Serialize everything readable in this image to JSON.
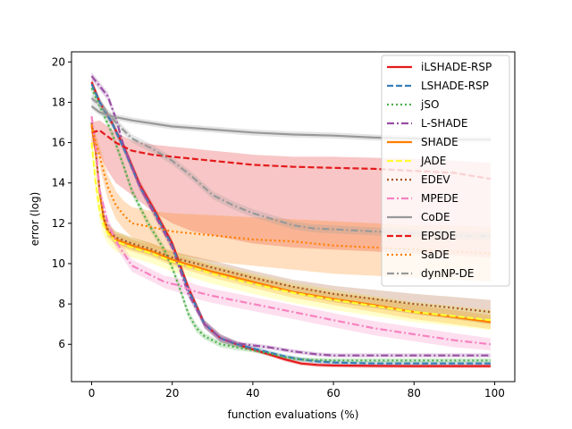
{
  "chart_data": {
    "type": "line",
    "title": "",
    "xlabel": "function evaluations (%)",
    "ylabel": "error (log)",
    "xlim": [
      -5,
      105
    ],
    "ylim": [
      4.15,
      20.5
    ],
    "xticks": [
      0,
      20,
      40,
      60,
      80,
      100
    ],
    "yticks": [
      6,
      8,
      10,
      12,
      14,
      16,
      18,
      20
    ],
    "grid": false,
    "legend_position": "top-right",
    "series": [
      {
        "name": "iLSHADE-RSP",
        "color": "#e41a1c",
        "dash": "solid",
        "x": [
          0,
          2,
          5,
          8,
          12,
          16,
          20,
          24,
          28,
          32,
          36,
          40,
          44,
          48,
          52,
          56,
          60,
          70,
          80,
          90,
          99
        ],
        "y": [
          19.0,
          18.0,
          17.0,
          15.8,
          13.9,
          12.5,
          11.0,
          8.8,
          7.0,
          6.3,
          6.0,
          5.75,
          5.5,
          5.25,
          5.05,
          4.98,
          4.95,
          4.93,
          4.92,
          4.92,
          4.92
        ],
        "band_lo": [
          18.8,
          17.8,
          16.8,
          15.6,
          13.7,
          12.3,
          10.8,
          8.6,
          6.8,
          6.1,
          5.85,
          5.65,
          5.4,
          5.15,
          4.95,
          4.88,
          4.85,
          4.83,
          4.82,
          4.82,
          4.82
        ],
        "band_hi": [
          19.2,
          18.2,
          17.2,
          16.0,
          14.1,
          12.7,
          11.2,
          9.0,
          7.2,
          6.5,
          6.15,
          5.85,
          5.6,
          5.35,
          5.15,
          5.08,
          5.05,
          5.03,
          5.02,
          5.02,
          5.02
        ]
      },
      {
        "name": "LSHADE-RSP",
        "color": "#377eb8",
        "dash": "dashed",
        "x": [
          0,
          2,
          5,
          8,
          12,
          16,
          20,
          24,
          28,
          32,
          36,
          40,
          44,
          48,
          52,
          56,
          60,
          70,
          80,
          90,
          99
        ],
        "y": [
          18.9,
          18.0,
          17.0,
          15.7,
          13.8,
          12.4,
          10.9,
          8.7,
          7.0,
          6.3,
          6.0,
          5.8,
          5.6,
          5.4,
          5.25,
          5.15,
          5.1,
          5.05,
          5.05,
          5.05,
          5.05
        ],
        "band_lo": [
          18.7,
          17.8,
          16.8,
          15.5,
          13.6,
          12.2,
          10.7,
          8.5,
          6.8,
          6.1,
          5.85,
          5.7,
          5.5,
          5.3,
          5.15,
          5.05,
          5.0,
          4.95,
          4.95,
          4.95,
          4.95
        ],
        "band_hi": [
          19.1,
          18.2,
          17.2,
          15.9,
          14.0,
          12.6,
          11.1,
          8.9,
          7.2,
          6.5,
          6.15,
          5.9,
          5.7,
          5.5,
          5.35,
          5.25,
          5.2,
          5.15,
          5.15,
          5.15,
          5.15
        ]
      },
      {
        "name": "jSO",
        "color": "#4daf4a",
        "dash": "dotted",
        "x": [
          0,
          2,
          5,
          8,
          10,
          14,
          18,
          20,
          22,
          24,
          26,
          28,
          32,
          36,
          40,
          44,
          48,
          52,
          60,
          70,
          80,
          90,
          99
        ],
        "y": [
          18.7,
          17.8,
          16.5,
          14.8,
          13.6,
          12.0,
          10.7,
          9.8,
          8.7,
          7.5,
          6.8,
          6.4,
          6.0,
          5.85,
          5.7,
          5.55,
          5.35,
          5.25,
          5.2,
          5.2,
          5.2,
          5.2,
          5.2
        ],
        "band_lo": [
          18.5,
          17.6,
          16.3,
          14.6,
          13.4,
          11.8,
          10.5,
          9.6,
          8.5,
          7.3,
          6.6,
          6.25,
          5.85,
          5.7,
          5.6,
          5.45,
          5.25,
          5.15,
          5.1,
          5.1,
          5.1,
          5.1,
          5.1
        ],
        "band_hi": [
          18.9,
          18.0,
          16.7,
          15.0,
          13.8,
          12.2,
          10.9,
          10.0,
          8.9,
          7.7,
          7.0,
          6.55,
          6.15,
          6.0,
          5.8,
          5.65,
          5.45,
          5.35,
          5.3,
          5.3,
          5.3,
          5.3,
          5.3
        ]
      },
      {
        "name": "L-SHADE",
        "color": "#984ea3",
        "dash": "dashdot",
        "x": [
          0,
          2,
          4,
          6,
          8,
          12,
          16,
          20,
          24,
          28,
          32,
          36,
          40,
          44,
          50,
          56,
          60,
          70,
          80,
          90,
          99
        ],
        "y": [
          19.3,
          18.8,
          18.3,
          17.2,
          15.8,
          13.8,
          12.3,
          10.8,
          8.5,
          7.0,
          6.3,
          6.05,
          5.95,
          5.85,
          5.65,
          5.5,
          5.45,
          5.45,
          5.45,
          5.45,
          5.45
        ],
        "band_lo": [
          19.1,
          18.6,
          18.1,
          17.0,
          15.6,
          13.6,
          12.1,
          10.6,
          8.3,
          6.8,
          6.15,
          5.95,
          5.85,
          5.75,
          5.55,
          5.4,
          5.35,
          5.35,
          5.35,
          5.35,
          5.35
        ],
        "band_hi": [
          19.5,
          19.0,
          18.5,
          17.4,
          16.0,
          14.0,
          12.5,
          11.0,
          8.7,
          7.2,
          6.45,
          6.15,
          6.05,
          5.95,
          5.75,
          5.6,
          5.55,
          5.55,
          5.55,
          5.55,
          5.55
        ]
      },
      {
        "name": "SHADE",
        "color": "#ff7f00",
        "dash": "solid",
        "x": [
          0,
          1,
          2,
          3,
          4,
          6,
          10,
          15,
          20,
          30,
          40,
          50,
          60,
          70,
          80,
          90,
          99
        ],
        "y": [
          16.9,
          15.5,
          13.5,
          12.2,
          11.6,
          11.2,
          10.9,
          10.6,
          10.2,
          9.6,
          9.1,
          8.6,
          8.25,
          7.95,
          7.6,
          7.35,
          7.1
        ],
        "band_lo": [
          16.6,
          15.2,
          13.2,
          11.9,
          11.3,
          10.9,
          10.6,
          10.3,
          9.9,
          9.3,
          8.8,
          8.3,
          7.95,
          7.6,
          7.25,
          7.0,
          6.75
        ],
        "band_hi": [
          17.2,
          15.8,
          13.8,
          12.5,
          11.9,
          11.5,
          11.2,
          10.9,
          10.5,
          9.9,
          9.4,
          8.9,
          8.55,
          8.3,
          7.95,
          7.7,
          7.45
        ]
      },
      {
        "name": "JADE",
        "color": "#ffff33",
        "dash": "dashed",
        "x": [
          0,
          1,
          2,
          3,
          4,
          6,
          10,
          15,
          20,
          30,
          40,
          50,
          60,
          70,
          80,
          90,
          99
        ],
        "y": [
          16.0,
          14.0,
          12.6,
          11.9,
          11.5,
          11.1,
          10.8,
          10.5,
          10.1,
          9.5,
          9.0,
          8.55,
          8.2,
          7.9,
          7.6,
          7.4,
          7.2
        ],
        "band_lo": [
          15.5,
          13.5,
          12.1,
          11.4,
          11.0,
          10.6,
          10.3,
          10.0,
          9.6,
          9.0,
          8.5,
          8.05,
          7.7,
          7.4,
          7.1,
          6.9,
          6.7
        ],
        "band_hi": [
          16.5,
          14.5,
          13.1,
          12.4,
          12.0,
          11.6,
          11.3,
          11.0,
          10.6,
          10.0,
          9.5,
          9.05,
          8.7,
          8.4,
          8.1,
          7.9,
          7.7
        ]
      },
      {
        "name": "EDEV",
        "color": "#a65628",
        "dash": "dotted",
        "x": [
          0,
          1,
          2,
          3,
          4,
          6,
          10,
          15,
          20,
          30,
          40,
          50,
          60,
          70,
          80,
          90,
          99
        ],
        "y": [
          17.0,
          15.6,
          13.6,
          12.3,
          11.7,
          11.3,
          11.0,
          10.7,
          10.3,
          9.8,
          9.3,
          8.85,
          8.5,
          8.25,
          8.0,
          7.8,
          7.6
        ],
        "band_lo": [
          16.7,
          15.3,
          13.3,
          12.0,
          11.4,
          11.0,
          10.7,
          10.4,
          10.0,
          9.45,
          8.95,
          8.5,
          8.1,
          7.8,
          7.5,
          7.25,
          7.0
        ],
        "band_hi": [
          17.3,
          15.9,
          13.9,
          12.6,
          12.0,
          11.6,
          11.3,
          11.0,
          10.6,
          10.15,
          9.65,
          9.2,
          8.9,
          8.7,
          8.5,
          8.35,
          8.2
        ]
      },
      {
        "name": "MPEDE",
        "color": "#f781bf",
        "dash": "dashdot",
        "x": [
          0,
          1,
          2,
          4,
          6,
          8,
          10,
          14,
          18,
          22,
          26,
          30,
          40,
          50,
          60,
          70,
          80,
          90,
          99
        ],
        "y": [
          17.3,
          15.8,
          13.6,
          12.0,
          11.1,
          10.5,
          9.9,
          9.5,
          9.1,
          8.9,
          8.6,
          8.4,
          8.0,
          7.6,
          7.2,
          6.8,
          6.5,
          6.2,
          6.0
        ],
        "band_lo": [
          17.0,
          15.5,
          13.3,
          11.7,
          10.8,
          10.2,
          9.6,
          9.2,
          8.8,
          8.55,
          8.25,
          8.05,
          7.65,
          7.25,
          6.85,
          6.45,
          6.15,
          5.85,
          5.7
        ],
        "band_hi": [
          17.6,
          16.1,
          13.9,
          12.3,
          11.4,
          10.8,
          10.2,
          9.8,
          9.4,
          9.25,
          8.95,
          8.75,
          8.35,
          7.95,
          7.55,
          7.15,
          6.85,
          6.55,
          6.3
        ]
      },
      {
        "name": "CoDE",
        "color": "#999999",
        "dash": "solid",
        "x": [
          0,
          2,
          5,
          10,
          15,
          20,
          30,
          40,
          50,
          60,
          70,
          80,
          90,
          99
        ],
        "y": [
          17.8,
          17.5,
          17.3,
          17.1,
          16.95,
          16.8,
          16.65,
          16.5,
          16.4,
          16.35,
          16.25,
          16.2,
          16.15,
          16.15
        ],
        "band_lo": [
          17.65,
          17.35,
          17.15,
          16.95,
          16.8,
          16.65,
          16.5,
          16.35,
          16.25,
          16.2,
          16.1,
          16.05,
          16.0,
          16.0
        ],
        "band_hi": [
          17.95,
          17.65,
          17.45,
          17.25,
          17.1,
          16.95,
          16.8,
          16.65,
          16.55,
          16.5,
          16.4,
          16.35,
          16.3,
          16.3
        ]
      },
      {
        "name": "EPSDE",
        "color": "#e41a1c",
        "dash": "dashed",
        "x": [
          0,
          2,
          4,
          6,
          8,
          10,
          15,
          20,
          25,
          30,
          35,
          40,
          50,
          60,
          70,
          80,
          90,
          99
        ],
        "y": [
          16.5,
          16.6,
          16.3,
          16.0,
          15.8,
          15.6,
          15.4,
          15.3,
          15.2,
          15.1,
          15.0,
          14.9,
          14.8,
          14.75,
          14.7,
          14.6,
          14.5,
          14.2
        ],
        "band_lo": [
          15.9,
          15.4,
          14.6,
          14.0,
          13.7,
          13.4,
          12.6,
          12.0,
          11.6,
          11.4,
          11.2,
          11.0,
          10.8,
          10.7,
          10.6,
          10.5,
          10.4,
          10.3
        ],
        "band_hi": [
          17.0,
          17.1,
          16.8,
          16.5,
          16.3,
          16.1,
          15.9,
          15.8,
          15.7,
          15.6,
          15.5,
          15.4,
          15.3,
          15.3,
          15.25,
          15.2,
          15.1,
          15.0
        ]
      },
      {
        "name": "SaDE",
        "color": "#ff7f00",
        "dash": "dotted",
        "x": [
          0,
          2,
          4,
          6,
          8,
          10,
          15,
          20,
          30,
          40,
          50,
          60,
          70,
          80,
          90,
          99
        ],
        "y": [
          16.8,
          15.3,
          13.8,
          12.9,
          12.4,
          12.0,
          11.8,
          11.6,
          11.4,
          11.2,
          11.1,
          10.9,
          10.8,
          10.7,
          10.6,
          10.5
        ],
        "band_lo": [
          16.5,
          14.8,
          13.2,
          12.2,
          11.7,
          11.3,
          10.9,
          10.5,
          10.1,
          9.9,
          9.7,
          9.5,
          9.4,
          9.3,
          9.2,
          9.1
        ],
        "band_hi": [
          17.1,
          15.8,
          14.4,
          13.6,
          13.1,
          12.8,
          12.6,
          12.5,
          12.4,
          12.3,
          12.2,
          12.1,
          12.0,
          11.9,
          11.9,
          11.8
        ]
      },
      {
        "name": "dynNP-DE",
        "color": "#999999",
        "dash": "dashdot",
        "x": [
          0,
          3,
          6,
          10,
          15,
          20,
          25,
          30,
          35,
          40,
          45,
          50,
          55,
          60,
          70,
          80,
          90,
          99
        ],
        "y": [
          18.2,
          17.7,
          17.0,
          16.2,
          15.7,
          15.1,
          14.3,
          13.4,
          12.9,
          12.5,
          12.2,
          11.9,
          11.75,
          11.7,
          11.6,
          11.5,
          11.4,
          11.35
        ],
        "band_lo": [
          18.0,
          17.5,
          16.8,
          16.0,
          15.5,
          14.9,
          14.1,
          13.2,
          12.7,
          12.3,
          12.0,
          11.7,
          11.55,
          11.5,
          11.4,
          11.3,
          11.2,
          11.15
        ],
        "band_hi": [
          18.4,
          17.9,
          17.2,
          16.4,
          15.9,
          15.3,
          14.5,
          13.6,
          13.1,
          12.7,
          12.4,
          12.1,
          11.95,
          11.9,
          11.8,
          11.7,
          11.6,
          11.55
        ]
      }
    ]
  }
}
